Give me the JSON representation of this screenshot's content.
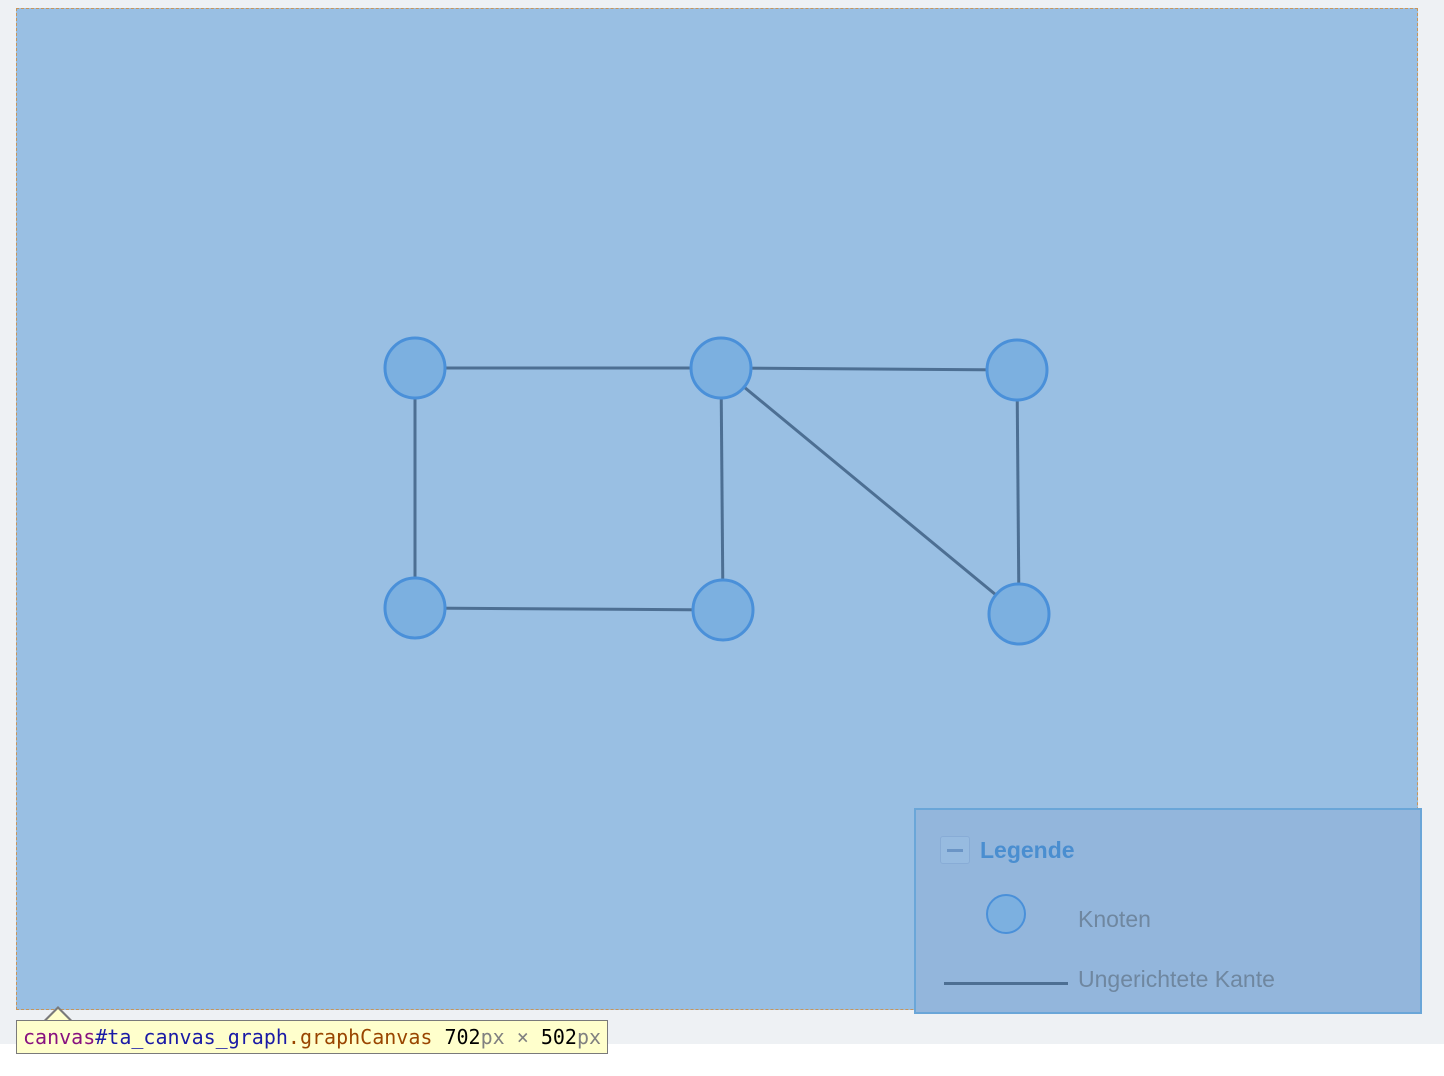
{
  "colors": {
    "canvas_background": "#99bfe3",
    "node_fill": "#7cb0e0",
    "node_stroke": "#4a90d9",
    "edge_stroke": "#4d6f93",
    "legend_background": "#93b6dc",
    "legend_title": "#4a8ed0"
  },
  "graph": {
    "nodes": [
      {
        "id": "n1"
      },
      {
        "id": "n2"
      },
      {
        "id": "n3"
      },
      {
        "id": "n4"
      },
      {
        "id": "n5"
      },
      {
        "id": "n6"
      }
    ],
    "edges": [
      {
        "from": "n1",
        "to": "n2",
        "type": "undirected"
      },
      {
        "from": "n2",
        "to": "n3",
        "type": "undirected"
      },
      {
        "from": "n1",
        "to": "n4",
        "type": "undirected"
      },
      {
        "from": "n2",
        "to": "n5",
        "type": "undirected"
      },
      {
        "from": "n2",
        "to": "n6",
        "type": "undirected"
      },
      {
        "from": "n3",
        "to": "n6",
        "type": "undirected"
      },
      {
        "from": "n4",
        "to": "n5",
        "type": "undirected"
      }
    ]
  },
  "legend": {
    "collapse_icon": "minus-icon",
    "title": "Legende",
    "node_label": "Knoten",
    "edge_label": "Ungerichtete Kante"
  },
  "inspector_tooltip": {
    "tag": "canvas",
    "id": "#ta_canvas_graph",
    "class_dot": ".",
    "class_name": "graphCanvas",
    "width": "702",
    "height": "502",
    "unit": "px",
    "times": "×"
  }
}
